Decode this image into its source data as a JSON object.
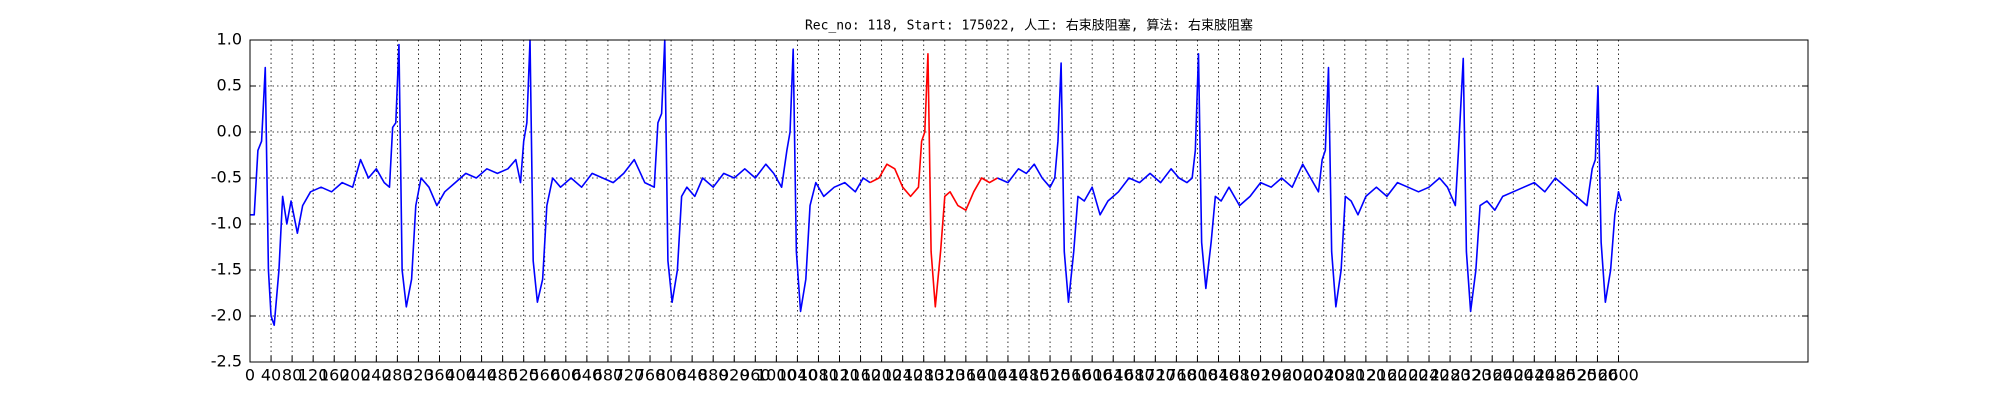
{
  "chart_data": {
    "type": "line",
    "title": "Rec_no: 118, Start: 175022, 人工: 右束肢阻塞, 算法: 右束肢阻塞",
    "series": [
      {
        "color": "#0000ff",
        "x": [
          0,
          8,
          15,
          22,
          29,
          35,
          40,
          46,
          55,
          62,
          70,
          78,
          90,
          100,
          115,
          135,
          155,
          175,
          195,
          210,
          225,
          240,
          255,
          265,
          271,
          277,
          283,
          289,
          297,
          307,
          315,
          325,
          340,
          355,
          370,
          390,
          410,
          430,
          450,
          470,
          490,
          505,
          514,
          520,
          526,
          532,
          538,
          546,
          556,
          564,
          575,
          590,
          610,
          630,
          650,
          670,
          690,
          710,
          730,
          750,
          768,
          775,
          782,
          788,
          794,
          802,
          812,
          820,
          830,
          845,
          860,
          880,
          900,
          920,
          940,
          960,
          980,
          995,
          1010,
          1020,
          1026,
          1032,
          1038,
          1046,
          1056,
          1064,
          1075,
          1090,
          1110,
          1130,
          1150,
          1165,
          1178,
          null,
          1420,
          1440,
          1460,
          1475,
          1490,
          1505,
          1520,
          1529,
          1535,
          1541,
          1547,
          1555,
          1565,
          1573,
          1585,
          1600,
          1615,
          1630,
          1650,
          1670,
          1690,
          1710,
          1730,
          1750,
          1765,
          1780,
          1790,
          1796,
          1802,
          1808,
          1816,
          1826,
          1834,
          1845,
          1860,
          1880,
          1900,
          1920,
          1940,
          1960,
          1980,
          2000,
          2015,
          2030,
          2037,
          2043,
          2049,
          2055,
          2063,
          2073,
          2081,
          2092,
          2105,
          2120,
          2140,
          2160,
          2180,
          2200,
          2220,
          2240,
          2260,
          2275,
          2290,
          2296,
          2305,
          2311,
          2319,
          2329,
          2337,
          2350,
          2365,
          2380,
          2400,
          2420,
          2440,
          2460,
          2480,
          2500,
          2520,
          2540,
          2550,
          2556,
          2561,
          2567,
          2575,
          2585,
          2593,
          2600,
          2605
        ],
        "values": [
          -0.9,
          -0.9,
          -0.2,
          -0.1,
          0.7,
          -1.5,
          -2.0,
          -2.1,
          -1.5,
          -0.7,
          -1.0,
          -0.75,
          -1.1,
          -0.8,
          -0.65,
          -0.6,
          -0.65,
          -0.55,
          -0.6,
          -0.3,
          -0.5,
          -0.4,
          -0.55,
          -0.6,
          0.05,
          0.1,
          0.95,
          -1.5,
          -1.9,
          -1.6,
          -0.8,
          -0.5,
          -0.6,
          -0.8,
          -0.65,
          -0.55,
          -0.45,
          -0.5,
          -0.4,
          -0.45,
          -0.4,
          -0.3,
          -0.55,
          -0.1,
          0.1,
          1.0,
          -1.4,
          -1.85,
          -1.6,
          -0.8,
          -0.5,
          -0.6,
          -0.5,
          -0.6,
          -0.45,
          -0.5,
          -0.55,
          -0.45,
          -0.3,
          -0.55,
          -0.6,
          0.1,
          0.2,
          1.0,
          -1.4,
          -1.85,
          -1.5,
          -0.7,
          -0.6,
          -0.7,
          -0.5,
          -0.6,
          -0.45,
          -0.5,
          -0.4,
          -0.5,
          -0.35,
          -0.45,
          -0.6,
          -0.2,
          0.0,
          0.9,
          -1.3,
          -1.95,
          -1.6,
          -0.8,
          -0.55,
          -0.7,
          -0.6,
          -0.55,
          -0.65,
          -0.5,
          -0.55,
          null,
          -0.5,
          -0.55,
          -0.4,
          -0.45,
          -0.35,
          -0.5,
          -0.6,
          -0.5,
          -0.1,
          0.75,
          -1.3,
          -1.85,
          -1.3,
          -0.7,
          -0.75,
          -0.6,
          -0.9,
          -0.75,
          -0.65,
          -0.5,
          -0.55,
          -0.45,
          -0.55,
          -0.4,
          -0.5,
          -0.55,
          -0.5,
          -0.2,
          0.85,
          -1.2,
          -1.7,
          -1.2,
          -0.7,
          -0.75,
          -0.6,
          -0.8,
          -0.7,
          -0.55,
          -0.6,
          -0.5,
          -0.6,
          -0.35,
          -0.5,
          -0.65,
          -0.3,
          -0.2,
          0.7,
          -1.3,
          -1.9,
          -1.5,
          -0.7,
          -0.75,
          -0.9,
          -0.7,
          -0.6,
          -0.7,
          -0.55,
          -0.6,
          -0.65,
          -0.6,
          -0.5,
          -0.6,
          -0.8,
          -0.2,
          0.8,
          -1.3,
          -1.95,
          -1.5,
          -0.8,
          -0.75,
          -0.85,
          -0.7,
          -0.65,
          -0.6,
          -0.55,
          -0.65,
          -0.5,
          -0.6,
          -0.7,
          -0.8,
          -0.4,
          -0.3,
          0.5,
          -1.2,
          -1.85,
          -1.5,
          -0.9,
          -0.65,
          -0.75
        ]
      },
      {
        "color": "#ff0000",
        "x": [
          1178,
          1195,
          1210,
          1225,
          1240,
          1255,
          1270,
          1276,
          1282,
          1288,
          1294,
          1302,
          1312,
          1320,
          1330,
          1345,
          1360,
          1375,
          1390,
          1405,
          1420
        ],
        "values": [
          -0.55,
          -0.5,
          -0.35,
          -0.4,
          -0.6,
          -0.7,
          -0.6,
          -0.1,
          0.0,
          0.85,
          -1.3,
          -1.9,
          -1.3,
          -0.7,
          -0.65,
          -0.8,
          -0.85,
          -0.65,
          -0.5,
          -0.55,
          -0.5
        ]
      }
    ],
    "xlim": [
      0,
      2960
    ],
    "ylim": [
      -2.5,
      1.0
    ],
    "xticks": [
      0,
      40,
      80,
      120,
      160,
      200,
      240,
      280,
      320,
      360,
      400,
      440,
      480,
      520,
      560,
      600,
      640,
      680,
      720,
      760,
      800,
      840,
      880,
      920,
      960,
      1000,
      1040,
      1080,
      1120,
      1160,
      1200,
      1240,
      1280,
      1320,
      1360,
      1400,
      1440,
      1480,
      1520,
      1560,
      1600,
      1640,
      1680,
      1720,
      1760,
      1800,
      1840,
      1880,
      1920,
      1960,
      2000,
      2040,
      2080,
      2120,
      2160,
      2200,
      2240,
      2280,
      2320,
      2360,
      2400,
      2440,
      2480,
      2520,
      2560,
      2600
    ],
    "yticks": [
      {
        "value": 1.0,
        "label": "1.0"
      },
      0.5,
      {
        "value": 0.0,
        "label": "0.0"
      },
      -0.5,
      {
        "value": -1.0,
        "label": "-1.0"
      },
      -1.5,
      {
        "value": -2.0,
        "label": "-2.0"
      },
      -2.5
    ],
    "grid": true
  }
}
